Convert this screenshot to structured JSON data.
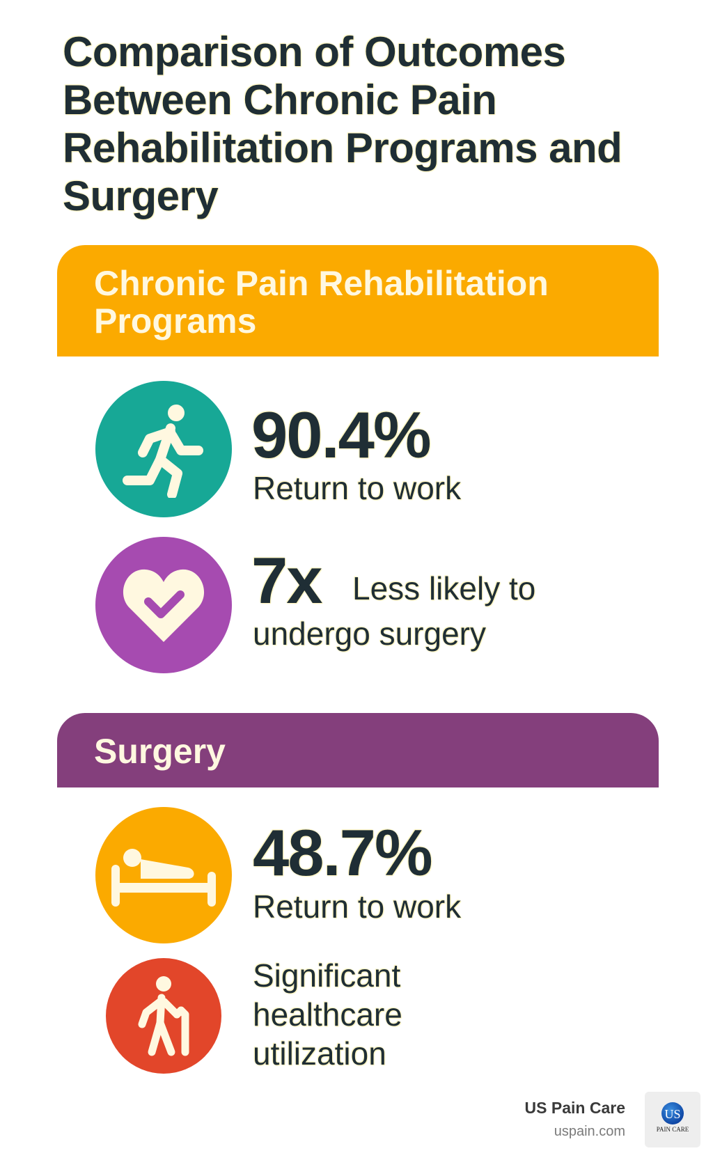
{
  "title": "Comparison of Outcomes Between Chronic Pain Rehabilitation Programs and Surgery",
  "sections": [
    {
      "heading": "Chronic Pain Rehabilitation Programs",
      "color": "#fbaa00",
      "stats": [
        {
          "icon": "running-person-icon",
          "color": "#17a896",
          "value": "90.4%",
          "label": "Return to work"
        },
        {
          "icon": "heart-check-icon",
          "color": "#a64bb0",
          "value": "7x",
          "label_inline": "Less likely to",
          "label": "undergo surgery"
        }
      ]
    },
    {
      "heading": "Surgery",
      "color": "#843f7c",
      "stats": [
        {
          "icon": "bed-patient-icon",
          "color": "#fbaa00",
          "value": "48.7%",
          "label": "Return to work"
        },
        {
          "icon": "person-with-cane-icon",
          "color": "#e2462a",
          "label_lines": [
            "Significant",
            "healthcare",
            "utilization"
          ]
        }
      ]
    }
  ],
  "footer": {
    "brand": "US Pain Care",
    "url": "uspain.com",
    "logo_text": "US PAIN CARE"
  }
}
